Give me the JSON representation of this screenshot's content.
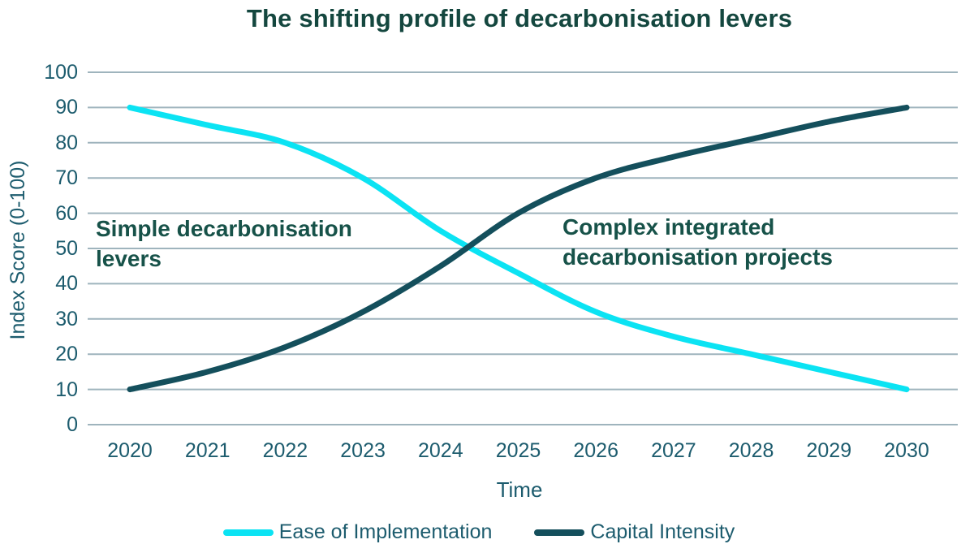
{
  "title": "The shifting profile of decarbonisation levers",
  "annotations": {
    "left": "Simple decarbonisation levers",
    "right": "Complex integrated decarbonisation projects"
  },
  "legend": {
    "items": [
      {
        "label": "Ease of Implementation",
        "color": "#0BE3F3"
      },
      {
        "label": "Capital Intensity",
        "color": "#144F5C"
      }
    ]
  },
  "chart_data": {
    "type": "line",
    "x": [
      2020,
      2021,
      2022,
      2023,
      2024,
      2025,
      2026,
      2027,
      2028,
      2029,
      2030
    ],
    "series": [
      {
        "name": "Ease of Implementation",
        "color": "#0BE3F3",
        "values": [
          90,
          85,
          80,
          70,
          55,
          43,
          32,
          25,
          20,
          15,
          10
        ]
      },
      {
        "name": "Capital Intensity",
        "color": "#144F5C",
        "values": [
          10,
          15,
          22,
          32,
          45,
          60,
          70,
          76,
          81,
          86,
          90
        ]
      }
    ],
    "title": "The shifting profile of decarbonisation levers",
    "xlabel": "Time",
    "ylabel": "Index Score (0-100)",
    "ylim": [
      0,
      100
    ],
    "y_ticks": [
      0,
      10,
      20,
      30,
      40,
      50,
      60,
      70,
      80,
      90,
      100
    ],
    "grid": true,
    "legend_position": "bottom"
  },
  "colors": {
    "title": "#14473F",
    "annotation": "#175249",
    "axis_text": "#1D5C6E",
    "gridline": "#9FB4BD",
    "background": "#FFFFFF"
  }
}
